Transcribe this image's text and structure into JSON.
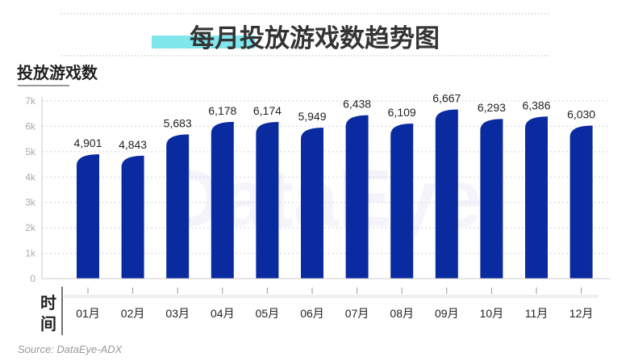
{
  "chart_data": {
    "type": "bar",
    "title": "每月投放游戏数趋势图",
    "title_highlight": "投放游戏数",
    "ylabel": "投放游戏数",
    "xlabel": "时间",
    "categories": [
      "01月",
      "02月",
      "03月",
      "04月",
      "05月",
      "06月",
      "07月",
      "08月",
      "09月",
      "10月",
      "11月",
      "12月"
    ],
    "values": [
      4901,
      4843,
      5683,
      6178,
      6174,
      5949,
      6438,
      6109,
      6667,
      6293,
      6386,
      6030
    ],
    "data_labels": [
      "4,901",
      "4,843",
      "5,683",
      "6,178",
      "6,174",
      "5,949",
      "6,438",
      "6,109",
      "6,667",
      "6,293",
      "6,386",
      "6,030"
    ],
    "ylim": [
      0,
      7000
    ],
    "yticks": [
      0,
      1000,
      2000,
      3000,
      4000,
      5000,
      6000,
      7000
    ],
    "ytick_labels": [
      "0",
      "1k",
      "2k",
      "3k",
      "4k",
      "5k",
      "6k",
      "7k"
    ],
    "grid": true,
    "legend": "none",
    "source": "Source: DataEye-ADX",
    "watermark": "DataEye",
    "colors": {
      "bar": "#0a2aa0",
      "highlight": "#7fe6ec",
      "grid": "#cfd3e6"
    }
  }
}
